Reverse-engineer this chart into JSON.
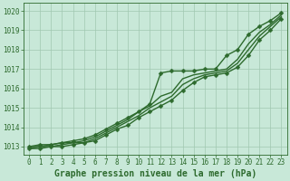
{
  "x": [
    0,
    1,
    2,
    3,
    4,
    5,
    6,
    7,
    8,
    9,
    10,
    11,
    12,
    13,
    14,
    15,
    16,
    17,
    18,
    19,
    20,
    21,
    22,
    23
  ],
  "series": [
    {
      "y": [
        1013.0,
        1013.1,
        1013.1,
        1013.2,
        1013.3,
        1013.4,
        1013.6,
        1013.9,
        1014.2,
        1014.5,
        1014.8,
        1015.2,
        1016.8,
        1016.9,
        1016.9,
        1016.9,
        1017.0,
        1017.0,
        1017.7,
        1018.0,
        1018.8,
        1019.2,
        1019.5,
        1019.9
      ],
      "has_markers": true
    },
    {
      "y": [
        1013.0,
        1013.0,
        1013.1,
        1013.2,
        1013.2,
        1013.3,
        1013.5,
        1013.8,
        1014.1,
        1014.4,
        1014.8,
        1015.1,
        1015.6,
        1015.8,
        1016.5,
        1016.7,
        1016.8,
        1016.9,
        1017.0,
        1017.5,
        1018.3,
        1018.9,
        1019.3,
        1019.8
      ],
      "has_markers": false
    },
    {
      "y": [
        1012.9,
        1013.0,
        1013.0,
        1013.1,
        1013.2,
        1013.2,
        1013.4,
        1013.7,
        1014.0,
        1014.3,
        1014.6,
        1015.0,
        1015.3,
        1015.6,
        1016.2,
        1016.5,
        1016.7,
        1016.8,
        1016.9,
        1017.3,
        1018.0,
        1018.7,
        1019.2,
        1019.7
      ],
      "has_markers": false
    },
    {
      "y": [
        1012.9,
        1012.9,
        1013.0,
        1013.0,
        1013.1,
        1013.2,
        1013.3,
        1013.6,
        1013.9,
        1014.1,
        1014.5,
        1014.8,
        1015.1,
        1015.4,
        1015.9,
        1016.3,
        1016.6,
        1016.7,
        1016.8,
        1017.1,
        1017.7,
        1018.5,
        1019.0,
        1019.6
      ],
      "has_markers": true
    }
  ],
  "line_color": "#2d6a2d",
  "bg_color": "#c8e8d8",
  "grid_color": "#a0c8b0",
  "ylim": [
    1012.6,
    1020.4
  ],
  "yticks": [
    1013,
    1014,
    1015,
    1016,
    1017,
    1018,
    1019,
    1020
  ],
  "xlim": [
    -0.5,
    23.5
  ],
  "xticks": [
    0,
    1,
    2,
    3,
    4,
    5,
    6,
    7,
    8,
    9,
    10,
    11,
    12,
    13,
    14,
    15,
    16,
    17,
    18,
    19,
    20,
    21,
    22,
    23
  ],
  "xlabel": "Graphe pression niveau de la mer (hPa)",
  "xlabel_fontsize": 7.0,
  "tick_fontsize": 5.5,
  "line_width": 1.0,
  "marker_size": 2.5
}
